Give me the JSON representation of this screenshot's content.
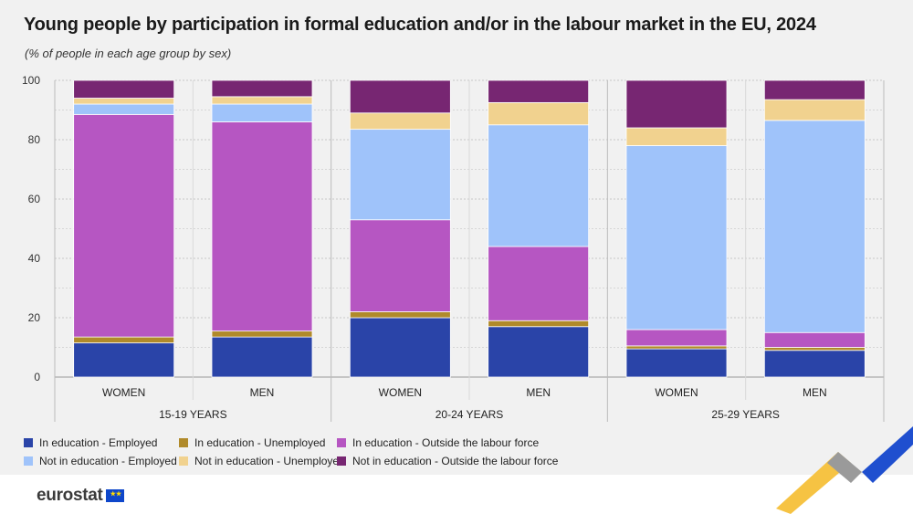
{
  "title": "Young people by participation in formal education and/or in the labour market in the EU, 2024",
  "subtitle": "(% of people in each age group by sex)",
  "brand": "eurostat",
  "colors": {
    "in_edu_employed": "#2a44a8",
    "in_edu_unemployed": "#b08a2a",
    "in_edu_outside": "#b656c2",
    "not_edu_employed": "#9fc3fa",
    "not_edu_unemployed": "#f1d28f",
    "not_edu_outside": "#772672"
  },
  "chart_data": {
    "type": "bar",
    "stacked": true,
    "ylim": [
      0,
      100
    ],
    "yticks": [
      0,
      20,
      40,
      60,
      80,
      100
    ],
    "grid": true,
    "legend_position": "bottom",
    "groups": [
      "15-19 YEARS",
      "20-24 YEARS",
      "25-29 YEARS"
    ],
    "categories": [
      "WOMEN",
      "MEN",
      "WOMEN",
      "MEN",
      "WOMEN",
      "MEN"
    ],
    "series": [
      {
        "name": "In education - Employed",
        "color_key": "in_edu_employed",
        "values": [
          11.5,
          13.5,
          20,
          17,
          9.5,
          9
        ]
      },
      {
        "name": "In education - Unemployed",
        "color_key": "in_edu_unemployed",
        "values": [
          2,
          2,
          2,
          2,
          1,
          1
        ]
      },
      {
        "name": "In education - Outside the labour force",
        "color_key": "in_edu_outside",
        "values": [
          75,
          70.5,
          31,
          25,
          5.5,
          5
        ]
      },
      {
        "name": "Not in education - Employed",
        "color_key": "not_edu_employed",
        "values": [
          3.5,
          6,
          30.5,
          41,
          62,
          71.5
        ]
      },
      {
        "name": "Not in education - Unemployed",
        "color_key": "not_edu_unemployed",
        "values": [
          2,
          2.5,
          5.5,
          7.5,
          6,
          7
        ]
      },
      {
        "name": "Not in education - Outside the labour force",
        "color_key": "not_edu_outside",
        "values": [
          6,
          5.5,
          11,
          7.5,
          16,
          6.5
        ]
      }
    ]
  }
}
